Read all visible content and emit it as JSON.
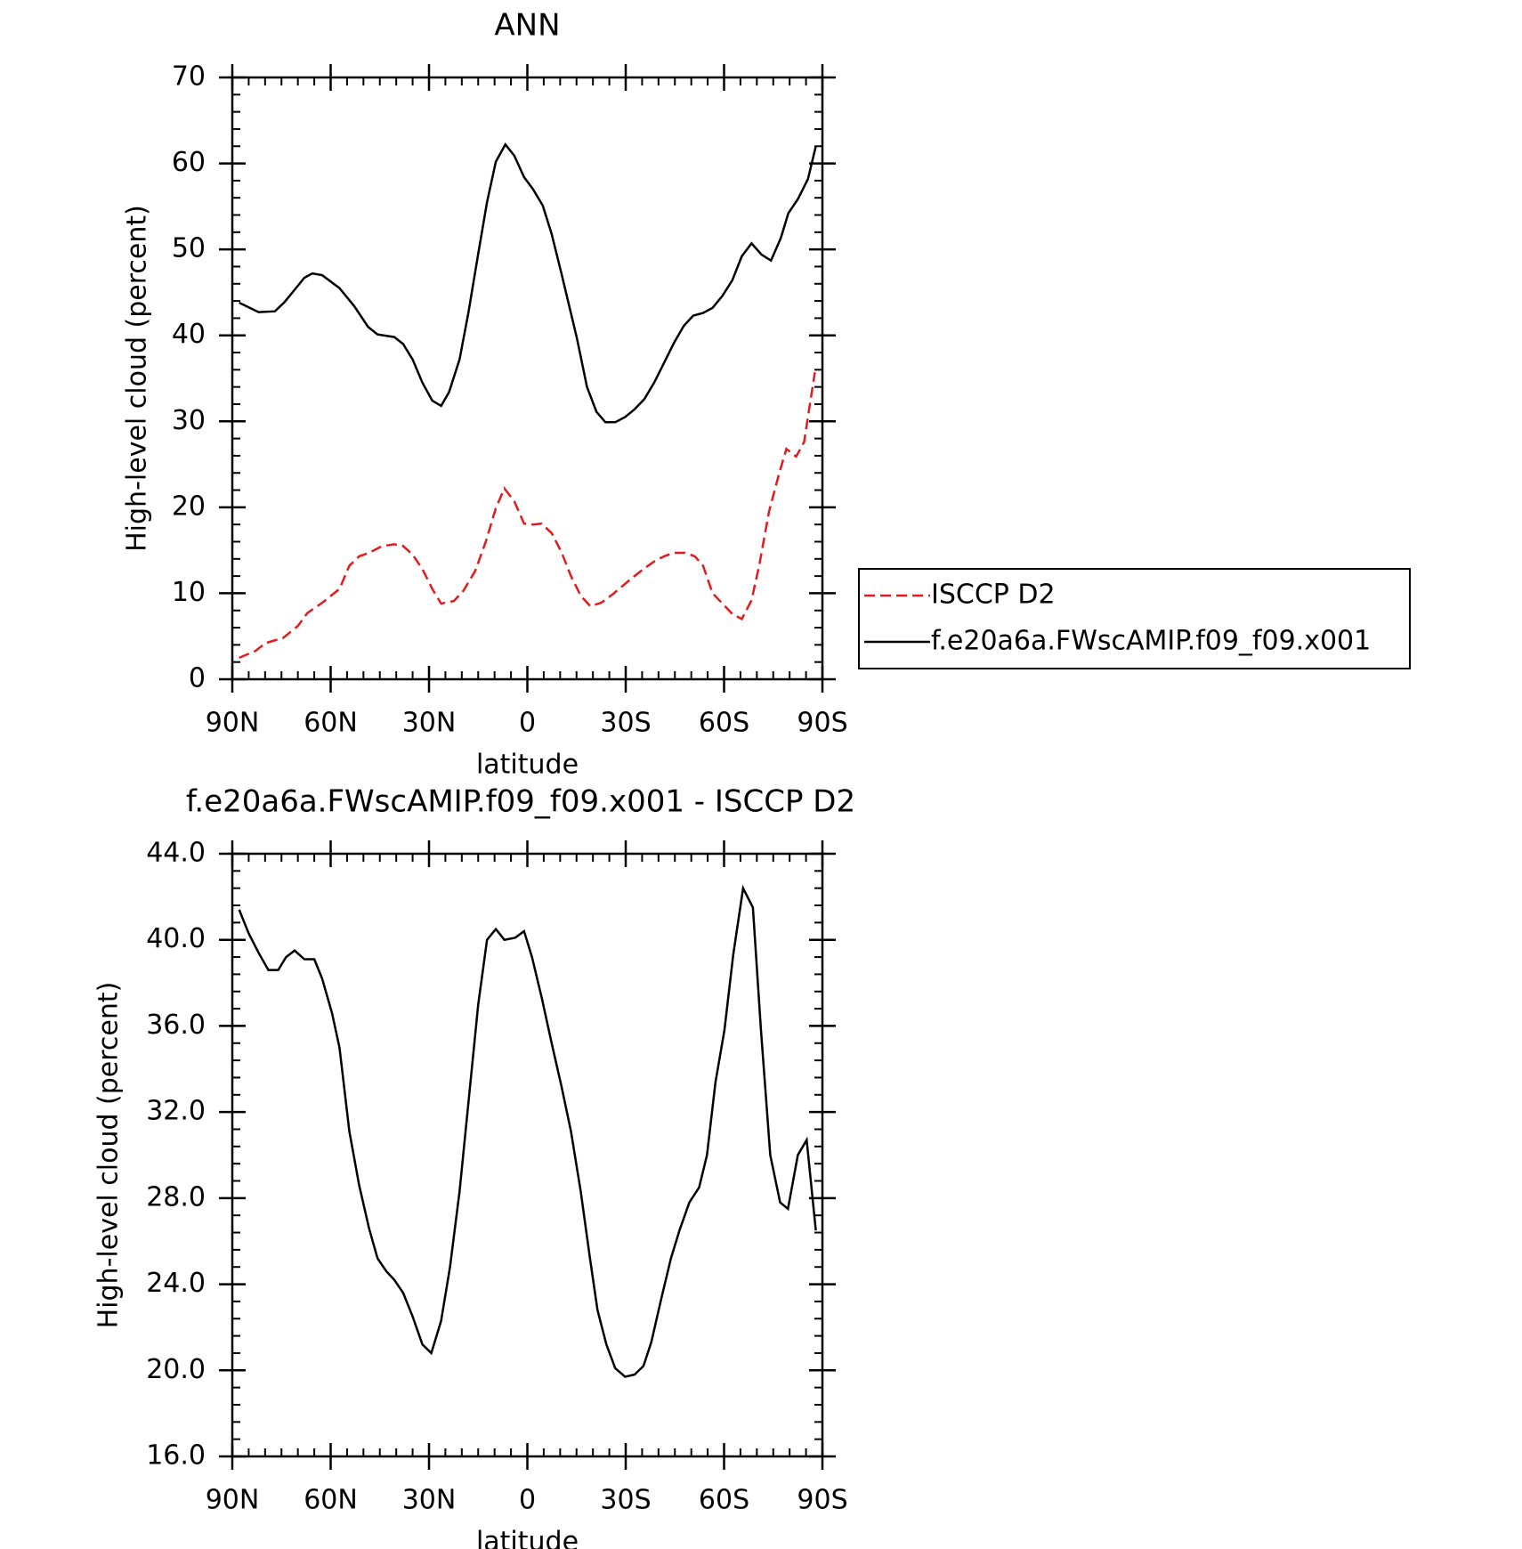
{
  "chart_data": [
    {
      "type": "line",
      "title": "ANN",
      "xlabel": "latitude",
      "ylabel": "High-level cloud (percent)",
      "xlim": [
        90,
        -90
      ],
      "xticks": [
        {
          "value": 90,
          "label": "90N"
        },
        {
          "value": 60,
          "label": "60N"
        },
        {
          "value": 30,
          "label": "30N"
        },
        {
          "value": 0,
          "label": "0"
        },
        {
          "value": -30,
          "label": "30S"
        },
        {
          "value": -60,
          "label": "60S"
        },
        {
          "value": -90,
          "label": "90S"
        }
      ],
      "ylim": [
        0,
        70
      ],
      "yticks": [
        0,
        10,
        20,
        30,
        40,
        50,
        60,
        70
      ],
      "legend": "outside-right",
      "series": [
        {
          "name": "ISCCP D2",
          "color": "#e41a1c",
          "dash": true,
          "x": [
            87.9,
            82.9,
            79.9,
            74.5,
            70,
            67.1,
            62.6,
            57.3,
            54.3,
            51.3,
            48.3,
            44.2,
            40.6,
            37.9,
            35,
            32,
            29,
            26.3,
            22.4,
            19.5,
            15.9,
            12.6,
            9.6,
            7,
            4,
            1,
            -1.7,
            -4.3,
            -7.4,
            -10.4,
            -13.3,
            -16.3,
            -19.2,
            -22.5,
            -26.1,
            -29.8,
            -32.7,
            -35.7,
            -38.7,
            -41.7,
            -44.7,
            -48.1,
            -51.1,
            -53.6,
            -56.5,
            -59.5,
            -62.5,
            -65.4,
            -68.4,
            -70.7,
            -73.7,
            -76.7,
            -79,
            -82,
            -84.4,
            -87.7
          ],
          "values": [
            2.5,
            3.3,
            4.2,
            4.8,
            6.2,
            7.7,
            8.9,
            10.5,
            13.2,
            14.3,
            14.7,
            15.5,
            15.7,
            15.5,
            14.5,
            12.8,
            10.5,
            8.8,
            9.1,
            10.3,
            12.6,
            16.1,
            19.9,
            22.2,
            20.7,
            18.1,
            18,
            18.1,
            17,
            14.8,
            12,
            9.7,
            8.5,
            8.9,
            9.9,
            11.1,
            12,
            12.9,
            13.7,
            14.3,
            14.7,
            14.7,
            14.3,
            13.2,
            10,
            8.8,
            7.6,
            7,
            9.2,
            13.2,
            19.5,
            23.8,
            26.8,
            25.9,
            27.6,
            35.7
          ]
        },
        {
          "name": "f.e20a6a.FWscAMIP.f09_f09.x001",
          "color": "#000000",
          "dash": false,
          "x": [
            87.9,
            82,
            77,
            74,
            71,
            68,
            65.6,
            62.6,
            57.3,
            52.8,
            48.6,
            45.7,
            40.6,
            37.9,
            35,
            32,
            29,
            26.3,
            23.9,
            20.7,
            18,
            15,
            12.3,
            9.6,
            6.7,
            4,
            1,
            -1.7,
            -4.7,
            -7.4,
            -10.4,
            -15.1,
            -18.2,
            -21.1,
            -23.8,
            -26.8,
            -29.8,
            -32.7,
            -35.7,
            -38.7,
            -41.7,
            -44.7,
            -47.7,
            -50.6,
            -53.6,
            -56.5,
            -59.5,
            -62.5,
            -65.4,
            -68.4,
            -71.4,
            -74.3,
            -77.3,
            -79.6,
            -82.6,
            -85.6,
            -88
          ],
          "values": [
            43.8,
            42.7,
            42.8,
            43.9,
            45.3,
            46.7,
            47.2,
            47,
            45.5,
            43.4,
            41,
            40.1,
            39.8,
            39,
            37.2,
            34.5,
            32.4,
            31.8,
            33.4,
            37.2,
            42.6,
            49.5,
            55.5,
            60.2,
            62.2,
            60.9,
            58.4,
            57,
            55.1,
            51.8,
            47.2,
            39.7,
            34,
            31.1,
            29.9,
            29.9,
            30.5,
            31.4,
            32.6,
            34.5,
            36.8,
            39.1,
            41.1,
            42.3,
            42.6,
            43.2,
            44.6,
            46.4,
            49.2,
            50.7,
            49.4,
            48.7,
            51.3,
            54.2,
            55.9,
            58.2,
            62
          ]
        }
      ]
    },
    {
      "type": "line",
      "title": "f.e20a6a.FWscAMIP.f09_f09.x001 - ISCCP D2",
      "xlabel": "latitude",
      "ylabel": "High-level cloud (percent)",
      "xlim": [
        90,
        -90
      ],
      "xticks": [
        {
          "value": 90,
          "label": "90N"
        },
        {
          "value": 60,
          "label": "60N"
        },
        {
          "value": 30,
          "label": "30N"
        },
        {
          "value": 0,
          "label": "0"
        },
        {
          "value": -30,
          "label": "30S"
        },
        {
          "value": -60,
          "label": "60S"
        },
        {
          "value": -90,
          "label": "90S"
        }
      ],
      "ylim": [
        16,
        44
      ],
      "yticks": [
        {
          "value": 16,
          "label": "16.0"
        },
        {
          "value": 20,
          "label": "20.0"
        },
        {
          "value": 24,
          "label": "24.0"
        },
        {
          "value": 28,
          "label": "28.0"
        },
        {
          "value": 32,
          "label": "32.0"
        },
        {
          "value": 36,
          "label": "36.0"
        },
        {
          "value": 40,
          "label": "40.0"
        },
        {
          "value": 44,
          "label": "44.0"
        }
      ],
      "series": [
        {
          "color": "#000000",
          "dash": false,
          "x": [
            87.9,
            85,
            82,
            79,
            76,
            73.6,
            71,
            68,
            65,
            62.6,
            59.6,
            57.3,
            54.3,
            51.3,
            48.3,
            45.7,
            43,
            40.6,
            37.9,
            35,
            32,
            29.3,
            26.3,
            23.6,
            20.7,
            18,
            15,
            12.3,
            9.6,
            7,
            3.7,
            1,
            -1.4,
            -4.4,
            -7.4,
            -10.4,
            -13.3,
            -16.3,
            -19,
            -21.4,
            -24.1,
            -26.8,
            -29.8,
            -32.7,
            -35.4,
            -37.8,
            -40.8,
            -43.8,
            -46.4,
            -49.4,
            -52.4,
            -54.8,
            -57.4,
            -60.1,
            -62.8,
            -65.8,
            -68.8,
            -71.2,
            -74.1,
            -77.1,
            -79.5,
            -82.5,
            -85.2,
            -88
          ],
          "values": [
            41.4,
            40.3,
            39.4,
            38.6,
            38.6,
            39.2,
            39.5,
            39.1,
            39.1,
            38.2,
            36.6,
            35,
            31.1,
            28.6,
            26.6,
            25.2,
            24.6,
            24.2,
            23.6,
            22.5,
            21.2,
            20.8,
            22.3,
            24.8,
            28.3,
            32.4,
            37,
            40,
            40.5,
            40,
            40.1,
            40.4,
            39.2,
            37.3,
            35.2,
            33.2,
            31.1,
            28.3,
            25.3,
            22.8,
            21.2,
            20.1,
            19.7,
            19.8,
            20.2,
            21.3,
            23.3,
            25.2,
            26.5,
            27.8,
            28.5,
            30,
            33.4,
            35.8,
            39.3,
            42.4,
            41.5,
            35.9,
            30,
            27.8,
            27.5,
            30,
            30.7,
            26.5
          ]
        }
      ]
    }
  ]
}
